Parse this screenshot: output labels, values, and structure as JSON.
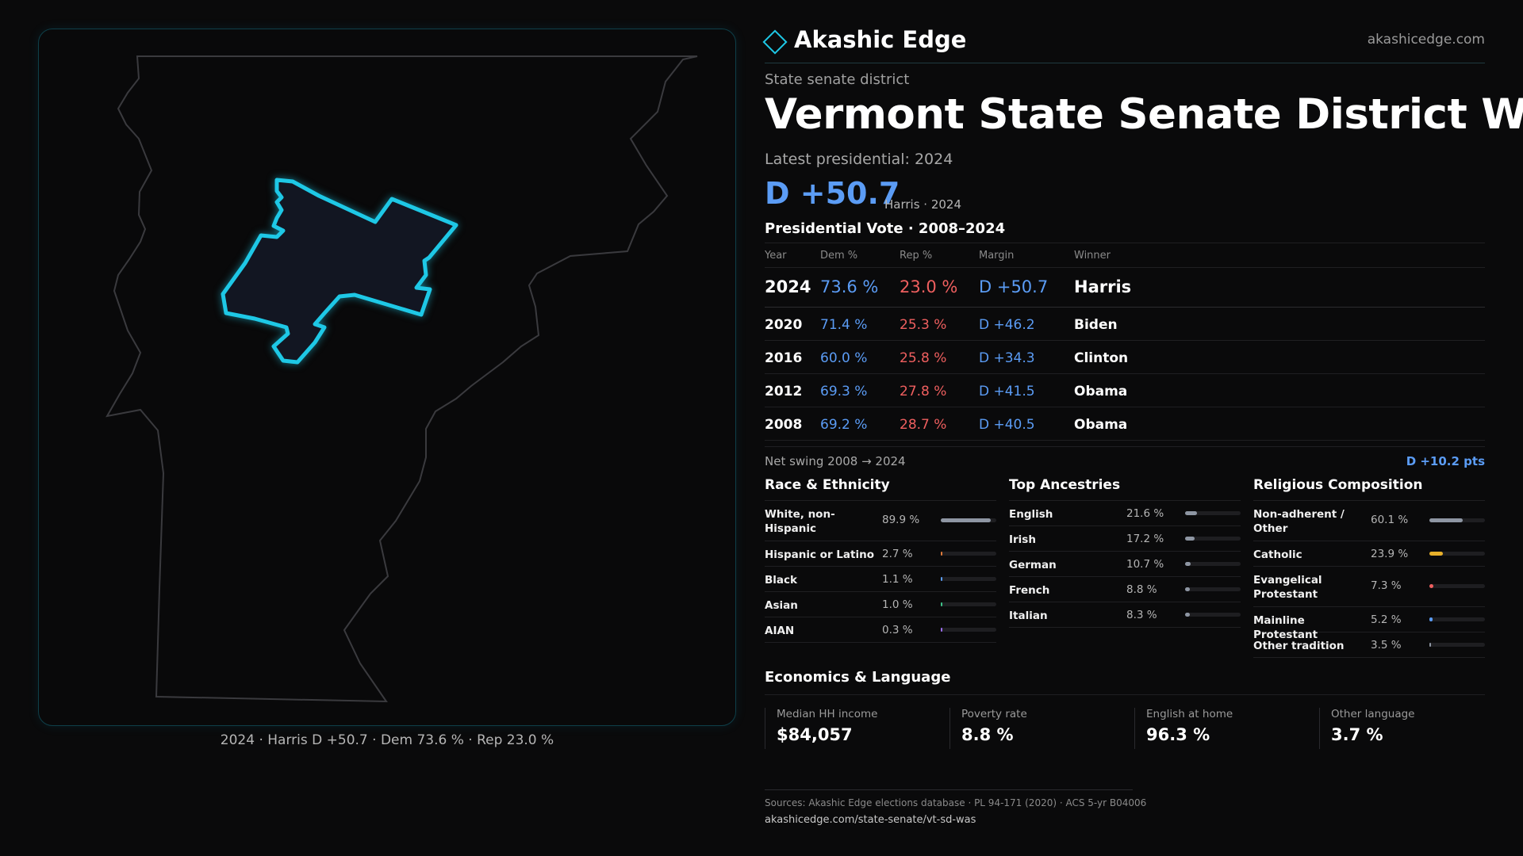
{
  "brand": {
    "name": "Akashic Edge",
    "url": "akashicedge.com"
  },
  "kicker": "State senate district",
  "title": "Vermont State Senate District WAS",
  "latest_label": "Latest presidential: 2024",
  "headline_margin": "D +50.7",
  "headline_sub": "Harris · 2024",
  "vote_table": {
    "title": "Presidential Vote · 2008–2024",
    "headers": {
      "year": "Year",
      "dem": "Dem %",
      "rep": "Rep %",
      "margin": "Margin",
      "winner": "Winner"
    },
    "rows": [
      {
        "year": "2024",
        "dem": "73.6 %",
        "rep": "23.0 %",
        "margin": "D +50.7",
        "winner": "Harris"
      },
      {
        "year": "2020",
        "dem": "71.4 %",
        "rep": "25.3 %",
        "margin": "D +46.2",
        "winner": "Biden"
      },
      {
        "year": "2016",
        "dem": "60.0 %",
        "rep": "25.8 %",
        "margin": "D +34.3",
        "winner": "Clinton"
      },
      {
        "year": "2012",
        "dem": "69.3 %",
        "rep": "27.8 %",
        "margin": "D +41.5",
        "winner": "Obama"
      },
      {
        "year": "2008",
        "dem": "69.2 %",
        "rep": "28.7 %",
        "margin": "D +40.5",
        "winner": "Obama"
      }
    ]
  },
  "swing": {
    "label": "Net swing 2008 → 2024",
    "value": "D +10.2 pts"
  },
  "race": {
    "title": "Race & Ethnicity",
    "items": [
      {
        "label": "White, non-Hispanic",
        "value": "89.9 %",
        "frac": 0.899,
        "color": "#8e96a3"
      },
      {
        "label": "Hispanic or Latino",
        "value": "2.7 %",
        "frac": 0.027,
        "color": "#e07b3a"
      },
      {
        "label": "Black",
        "value": "1.1 %",
        "frac": 0.011,
        "color": "#5b9cf5"
      },
      {
        "label": "Asian",
        "value": "1.0 %",
        "frac": 0.01,
        "color": "#3ec48a"
      },
      {
        "label": "AIAN",
        "value": "0.3 %",
        "frac": 0.003,
        "color": "#9b6ef0"
      }
    ]
  },
  "ancestry": {
    "title": "Top Ancestries",
    "items": [
      {
        "label": "English",
        "value": "21.6 %",
        "frac": 0.216,
        "color": "#8e96a3"
      },
      {
        "label": "Irish",
        "value": "17.2 %",
        "frac": 0.172,
        "color": "#8e96a3"
      },
      {
        "label": "German",
        "value": "10.7 %",
        "frac": 0.107,
        "color": "#8e96a3"
      },
      {
        "label": "French",
        "value": "8.8 %",
        "frac": 0.088,
        "color": "#8e96a3"
      },
      {
        "label": "Italian",
        "value": "8.3 %",
        "frac": 0.083,
        "color": "#8e96a3"
      }
    ]
  },
  "religion": {
    "title": "Religious Composition",
    "items": [
      {
        "label": "Non-adherent / Other",
        "value": "60.1 %",
        "frac": 0.601,
        "color": "#8e96a3"
      },
      {
        "label": "Catholic",
        "value": "23.9 %",
        "frac": 0.239,
        "color": "#e8b02a"
      },
      {
        "label": "Evangelical Protestant",
        "value": "7.3 %",
        "frac": 0.073,
        "color": "#ef5f5f"
      },
      {
        "label": "Mainline Protestant",
        "value": "5.2 %",
        "frac": 0.052,
        "color": "#5b9cf5"
      },
      {
        "label": "Other tradition",
        "value": "3.5 %",
        "frac": 0.035,
        "color": "#8e96a3"
      }
    ]
  },
  "economics": {
    "title": "Economics & Language",
    "items": [
      {
        "label": "Median HH income",
        "value": "$84,057"
      },
      {
        "label": "Poverty rate",
        "value": "8.8 %"
      },
      {
        "label": "English at home",
        "value": "96.3 %"
      },
      {
        "label": "Other language",
        "value": "3.7 %"
      }
    ]
  },
  "map_caption": "2024 · Harris D +50.7 · Dem 73.6 % · Rep 23.0 %",
  "sources": "Sources: Akashic Edge elections database · PL 94-171 (2020) · ACS 5-yr B04006",
  "source_url": "akashicedge.com/state-senate/vt-sd-was",
  "colors": {
    "accent": "#1ec8e6",
    "dem": "#5b9cf5",
    "rep": "#ef5f5f",
    "background": "#0a0a0b"
  }
}
